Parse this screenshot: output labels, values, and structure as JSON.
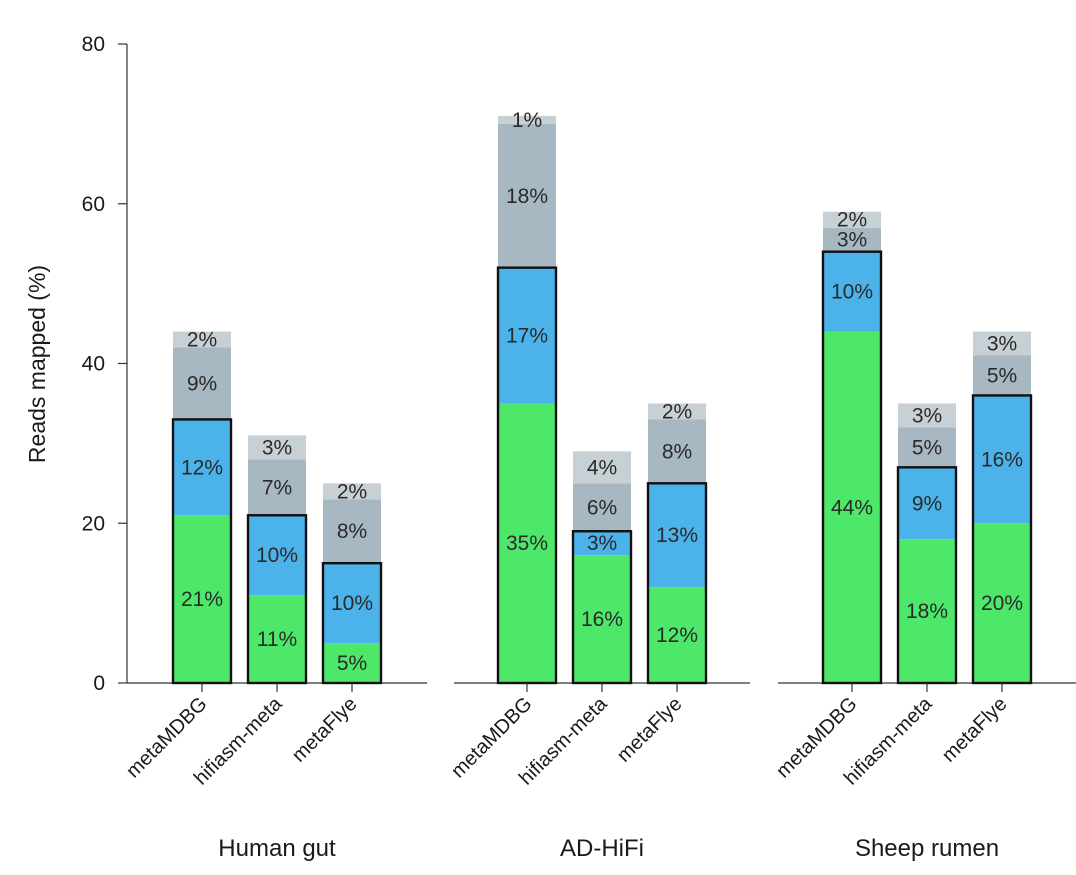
{
  "chart_data": {
    "type": "bar",
    "stacked": true,
    "ylabel": "Reads mapped (%)",
    "ylim": [
      0,
      80
    ],
    "yticks": [
      0,
      20,
      40,
      60,
      80
    ],
    "grid": false,
    "colors": {
      "complete": "#4de86a",
      "high_quality": "#4bb3ea",
      "medium": "#a7b8c2",
      "low": "#c6d0d5",
      "outline": "#111111"
    },
    "groups": [
      {
        "name": "Human gut",
        "bars": [
          {
            "method": "metaMDBG",
            "segments": [
              21,
              12,
              9,
              2
            ],
            "labels": [
              "21%",
              "12%",
              "9%",
              "2%"
            ]
          },
          {
            "method": "hifiasm-meta",
            "segments": [
              11,
              10,
              7,
              3
            ],
            "labels": [
              "11%",
              "10%",
              "7%",
              "3%"
            ]
          },
          {
            "method": "metaFlye",
            "segments": [
              5,
              10,
              8,
              2
            ],
            "labels": [
              "5%",
              "10%",
              "8%",
              "2%"
            ]
          }
        ]
      },
      {
        "name": "AD-HiFi",
        "bars": [
          {
            "method": "metaMDBG",
            "segments": [
              35,
              17,
              18,
              1
            ],
            "labels": [
              "35%",
              "17%",
              "18%",
              "1%"
            ]
          },
          {
            "method": "hifiasm-meta",
            "segments": [
              16,
              3,
              6,
              4
            ],
            "labels": [
              "16%",
              "3%",
              "6%",
              "4%"
            ]
          },
          {
            "method": "metaFlye",
            "segments": [
              12,
              13,
              8,
              2
            ],
            "labels": [
              "12%",
              "13%",
              "8%",
              "2%"
            ]
          }
        ]
      },
      {
        "name": "Sheep rumen",
        "bars": [
          {
            "method": "metaMDBG",
            "segments": [
              44,
              10,
              3,
              2
            ],
            "labels": [
              "44%",
              "10%",
              "3%",
              "2%"
            ]
          },
          {
            "method": "hifiasm-meta",
            "segments": [
              18,
              9,
              5,
              3
            ],
            "labels": [
              "18%",
              "9%",
              "5%",
              "3%"
            ]
          },
          {
            "method": "metaFlye",
            "segments": [
              20,
              16,
              5,
              3
            ],
            "labels": [
              "20%",
              "16%",
              "5%",
              "3%"
            ]
          }
        ]
      }
    ]
  }
}
